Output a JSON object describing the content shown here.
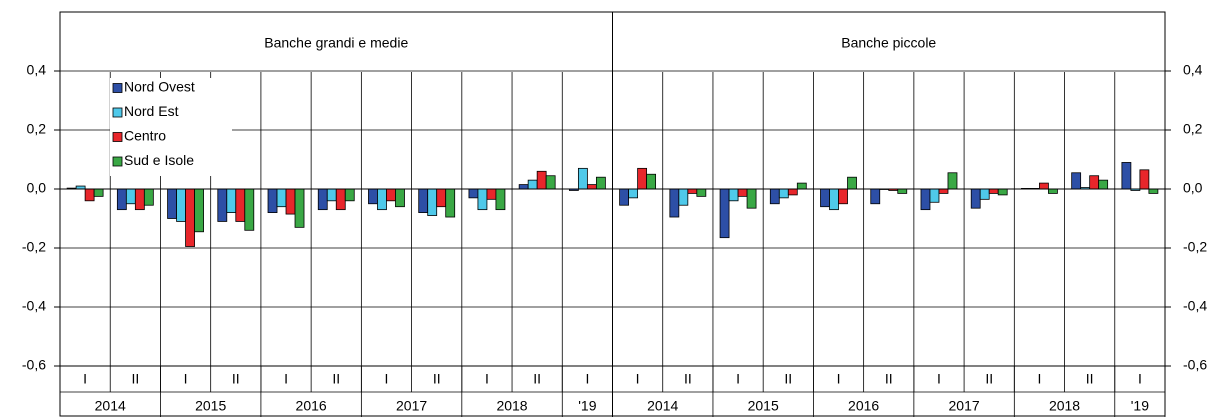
{
  "chart_data": [
    {
      "type": "bar",
      "title": "Banche grandi e medie",
      "categories": [
        "I",
        "II",
        "I",
        "II",
        "I",
        "II",
        "I",
        "II",
        "I",
        "II",
        "I"
      ],
      "groups": [
        {
          "label": "2014",
          "count": 2
        },
        {
          "label": "2015",
          "count": 2
        },
        {
          "label": "2016",
          "count": 2
        },
        {
          "label": "2017",
          "count": 2
        },
        {
          "label": "2018",
          "count": 2
        },
        {
          "label": "'19",
          "count": 1
        }
      ],
      "series": [
        {
          "name": "Nord Ovest",
          "color": "#2d4fa6",
          "values": [
            0.003,
            -0.07,
            -0.1,
            -0.11,
            -0.08,
            -0.07,
            -0.05,
            -0.08,
            -0.03,
            0.015,
            -0.005
          ]
        },
        {
          "name": "Nord Est",
          "color": "#4fc9ea",
          "values": [
            0.01,
            -0.05,
            -0.11,
            -0.08,
            -0.06,
            -0.04,
            -0.07,
            -0.09,
            -0.07,
            0.03,
            0.07
          ]
        },
        {
          "name": "Centro",
          "color": "#e8262b",
          "values": [
            -0.04,
            -0.07,
            -0.195,
            -0.11,
            -0.085,
            -0.07,
            -0.04,
            -0.06,
            -0.035,
            0.06,
            0.015
          ]
        },
        {
          "name": "Sud e Isole",
          "color": "#3aa845",
          "values": [
            -0.025,
            -0.055,
            -0.145,
            -0.14,
            -0.13,
            -0.04,
            -0.06,
            -0.095,
            -0.07,
            0.045,
            0.04
          ]
        }
      ],
      "ylim": [
        -0.6,
        0.6
      ],
      "yticks": [
        {
          "value": -0.6,
          "label": "-0,6"
        },
        {
          "value": -0.4,
          "label": "-0,4"
        },
        {
          "value": -0.2,
          "label": "-0,2"
        },
        {
          "value": 0,
          "label": "0,0"
        },
        {
          "value": 0.2,
          "label": "0,2"
        },
        {
          "value": 0.4,
          "label": "0,4"
        }
      ],
      "legend": "upper left"
    },
    {
      "type": "bar",
      "title": "Banche piccole",
      "categories": [
        "I",
        "II",
        "I",
        "II",
        "I",
        "II",
        "I",
        "II",
        "I",
        "II",
        "I"
      ],
      "groups": [
        {
          "label": "2014",
          "count": 2
        },
        {
          "label": "2015",
          "count": 2
        },
        {
          "label": "2016",
          "count": 2
        },
        {
          "label": "2017",
          "count": 2
        },
        {
          "label": "2018",
          "count": 2
        },
        {
          "label": "'19",
          "count": 1
        }
      ],
      "series": [
        {
          "color": "#2d4fa6",
          "values": [
            -0.055,
            -0.095,
            -0.165,
            -0.05,
            -0.06,
            -0.05,
            -0.07,
            -0.065,
            0.002,
            0.055,
            0.09
          ]
        },
        {
          "color": "#4fc9ea",
          "values": [
            -0.03,
            -0.055,
            -0.04,
            -0.03,
            -0.07,
            0,
            -0.045,
            -0.035,
            0.002,
            0.005,
            -0.005
          ]
        },
        {
          "color": "#e8262b",
          "values": [
            0.07,
            -0.015,
            -0.025,
            -0.02,
            -0.05,
            -0.005,
            -0.015,
            -0.015,
            0.02,
            0.045,
            0.065
          ]
        },
        {
          "color": "#3aa845",
          "values": [
            0.05,
            -0.025,
            -0.065,
            0.02,
            0.04,
            -0.015,
            0.055,
            -0.02,
            -0.015,
            0.03,
            -0.015
          ]
        }
      ],
      "ylim": [
        -0.6,
        0.6
      ],
      "yticks": [
        {
          "value": -0.6,
          "label": "-0,6"
        },
        {
          "value": -0.4,
          "label": "-0,4"
        },
        {
          "value": -0.2,
          "label": "-0,2"
        },
        {
          "value": 0,
          "label": "0,0"
        },
        {
          "value": 0.2,
          "label": "0,2"
        },
        {
          "value": 0.4,
          "label": "0,4"
        }
      ]
    }
  ]
}
